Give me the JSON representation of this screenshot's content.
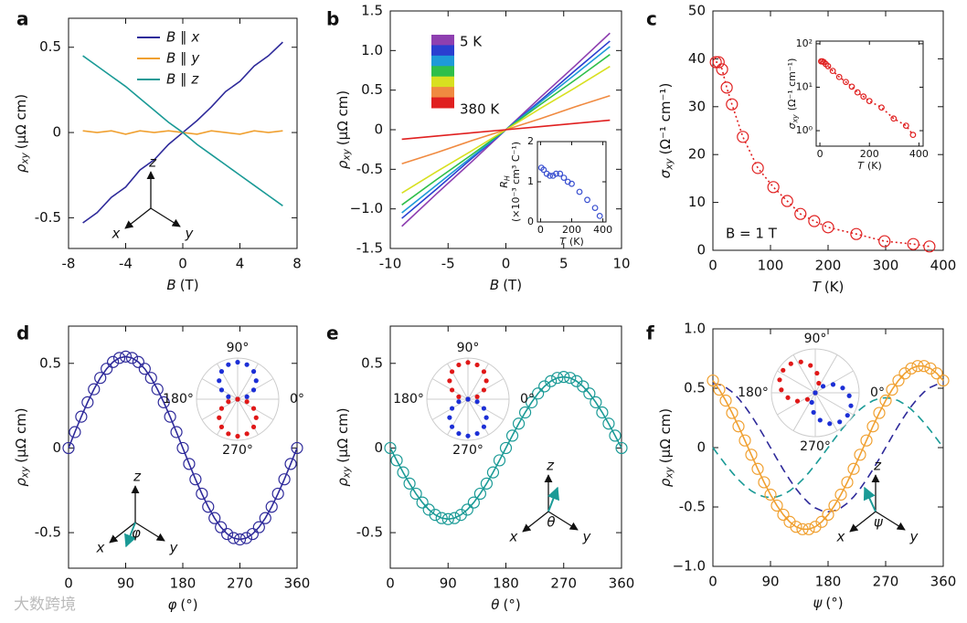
{
  "watermark": "大数跨境",
  "chart_data": [
    {
      "type": "line",
      "label": "a",
      "xlabel": {
        "symbol": "B",
        "unit": "(T)"
      },
      "ylabel": {
        "symbol": "ρ",
        "sub": "xy",
        "unit": "(μΩ cm)"
      },
      "x": [
        -7,
        -6,
        -5,
        -4,
        -3,
        -2,
        -1,
        0,
        1,
        2,
        3,
        4,
        5,
        6,
        7
      ],
      "series": [
        {
          "name": "B ∥ x",
          "color": "#2e2a9a",
          "style": "line",
          "values": [
            -0.53,
            -0.47,
            -0.38,
            -0.32,
            -0.22,
            -0.16,
            -0.07,
            0,
            0.07,
            0.15,
            0.24,
            0.3,
            0.39,
            0.45,
            0.53
          ]
        },
        {
          "name": "B ∥ y",
          "color": "#f0a030",
          "style": "line",
          "values": [
            0.01,
            0,
            0.01,
            -0.01,
            0.01,
            0,
            0.01,
            0,
            -0.01,
            0.01,
            0,
            -0.01,
            0.01,
            0,
            0.01
          ]
        },
        {
          "name": "B ∥ z",
          "color": "#1a9a96",
          "style": "line",
          "values": [
            0.45,
            0.39,
            0.33,
            0.27,
            0.2,
            0.13,
            0.06,
            0,
            -0.07,
            -0.13,
            -0.19,
            -0.25,
            -0.31,
            -0.37,
            -0.43
          ]
        }
      ],
      "xlim": [
        -8,
        8
      ],
      "xticks": [
        -8,
        -4,
        0,
        4,
        8
      ],
      "ylim": [
        -0.68,
        0.67
      ],
      "yticks": [
        -0.5,
        0,
        0.5
      ],
      "legend": "upper center",
      "frame_labels": [
        "z",
        "x",
        "y"
      ]
    },
    {
      "type": "line",
      "label": "b",
      "xlabel": {
        "symbol": "B",
        "unit": "(T)"
      },
      "ylabel": {
        "symbol": "ρ",
        "sub": "xy",
        "unit": "(μΩ cm)"
      },
      "x": [
        -9,
        -6,
        -3,
        0,
        3,
        6,
        9
      ],
      "series": [
        {
          "color": "#8e3fb0",
          "style": "line",
          "values": [
            -1.22,
            -0.81,
            -0.41,
            0,
            0.41,
            0.81,
            1.22
          ]
        },
        {
          "color": "#2a3fd0",
          "style": "line",
          "values": [
            -1.12,
            -0.75,
            -0.37,
            0,
            0.37,
            0.75,
            1.12
          ]
        },
        {
          "color": "#1e9ad8",
          "style": "line",
          "values": [
            -1.05,
            -0.7,
            -0.35,
            0,
            0.35,
            0.7,
            1.05
          ]
        },
        {
          "color": "#2fbf4a",
          "style": "line",
          "values": [
            -0.95,
            -0.63,
            -0.32,
            0,
            0.32,
            0.63,
            0.95
          ]
        },
        {
          "color": "#d8e020",
          "style": "line",
          "values": [
            -0.8,
            -0.53,
            -0.27,
            0,
            0.27,
            0.53,
            0.8
          ]
        },
        {
          "color": "#f08a40",
          "style": "line",
          "values": [
            -0.43,
            -0.29,
            -0.14,
            0,
            0.14,
            0.29,
            0.43
          ]
        },
        {
          "color": "#e02020",
          "style": "line",
          "values": [
            -0.12,
            -0.08,
            -0.04,
            0,
            0.04,
            0.08,
            0.12
          ]
        }
      ],
      "colorbar_labels": [
        "5 K",
        "380 K"
      ],
      "xlim": [
        -10,
        10
      ],
      "xticks": [
        -10,
        -5,
        0,
        5,
        10
      ],
      "ylim": [
        -1.5,
        1.5
      ],
      "yticks": [
        -1.5,
        {
          "value": -1,
          "label": "−1.0"
        },
        -0.5,
        0,
        0.5,
        {
          "value": 1,
          "label": "1.0"
        },
        1.5
      ],
      "inset": {
        "type": "scatter",
        "xlabel": {
          "symbol": "T",
          "unit": "(K)"
        },
        "ylabel": {
          "symbol": "R",
          "sub": "H",
          "unit": "(×10⁻³ cm³ C⁻¹)"
        },
        "x": [
          5,
          20,
          40,
          60,
          80,
          100,
          125,
          150,
          175,
          200,
          250,
          300,
          350,
          380
        ],
        "series": [
          {
            "color": "#3a50d0",
            "style": "markers",
            "values": [
              1.35,
              1.3,
              1.2,
              1.15,
              1.15,
              1.2,
              1.2,
              1.1,
              1.0,
              0.95,
              0.75,
              0.55,
              0.35,
              0.15
            ]
          }
        ],
        "xlim": [
          -20,
          420
        ],
        "xticks": [
          0,
          200,
          400
        ],
        "ylim": [
          0,
          2
        ],
        "yticks": [
          0,
          1,
          2
        ]
      }
    },
    {
      "type": "scatter",
      "label": "c",
      "xlabel": {
        "symbol": "T",
        "unit": "(K)"
      },
      "ylabel": {
        "symbol": "σ",
        "sub": "xy",
        "unit": "(Ω⁻¹ cm⁻¹)"
      },
      "x": [
        5,
        10,
        16,
        24,
        33,
        52,
        78,
        105,
        129,
        152,
        176,
        200,
        249,
        298,
        348,
        376
      ],
      "series": [
        {
          "color": "#e02020",
          "style": "line+markers",
          "line_style": "dotted",
          "values": [
            39.3,
            39.3,
            37.8,
            34,
            30.5,
            23.7,
            17.2,
            13.2,
            10.3,
            7.6,
            6.1,
            4.8,
            3.4,
            1.9,
            1.3,
            0.8
          ]
        }
      ],
      "xlim": [
        0,
        400
      ],
      "xticks": [
        0,
        100,
        200,
        300,
        400
      ],
      "ylim": [
        0,
        50
      ],
      "yticks": [
        0,
        10,
        20,
        30,
        40,
        50
      ],
      "annotation": "B = 1 T",
      "inset": {
        "xlabel": {
          "symbol": "T",
          "unit": "(K)"
        },
        "ylabel": {
          "symbol": "σ",
          "sub": "xy",
          "unit": "(Ω⁻¹ cm⁻¹)"
        },
        "xlim": [
          -15,
          417
        ],
        "xticks": [
          0,
          200,
          400
        ],
        "ylim": [
          0.44,
          115
        ],
        "ylog": true,
        "yticks": [
          {
            "value": 1,
            "label": "10⁰"
          },
          {
            "value": 10,
            "label": "10¹"
          },
          {
            "value": 100,
            "label": "10²"
          }
        ]
      }
    },
    {
      "type": "line",
      "label": "d",
      "xlabel": {
        "symbol": "φ",
        "unit": "(°)"
      },
      "ylabel": {
        "symbol": "ρ",
        "sub": "xy",
        "unit": "(μΩ cm)"
      },
      "x": [
        0,
        10,
        20,
        30,
        40,
        50,
        60,
        70,
        80,
        90,
        100,
        110,
        120,
        130,
        140,
        150,
        160,
        170,
        180,
        190,
        200,
        210,
        220,
        230,
        240,
        250,
        260,
        270,
        280,
        290,
        300,
        310,
        320,
        330,
        340,
        350,
        360
      ],
      "series": [
        {
          "color": "#2e2a9a",
          "style": "line+markers",
          "values": [
            0,
            0.094,
            0.185,
            0.27,
            0.347,
            0.414,
            0.468,
            0.508,
            0.532,
            0.54,
            0.532,
            0.508,
            0.468,
            0.414,
            0.347,
            0.27,
            0.185,
            0.094,
            0,
            -0.094,
            -0.185,
            -0.27,
            -0.347,
            -0.414,
            -0.468,
            -0.508,
            -0.532,
            -0.54,
            -0.532,
            -0.508,
            -0.468,
            -0.414,
            -0.347,
            -0.27,
            -0.185,
            -0.094,
            0
          ]
        }
      ],
      "xlim": [
        0,
        360
      ],
      "xticks": [
        0,
        90,
        180,
        270,
        360
      ],
      "ylim": [
        -0.71,
        0.72
      ],
      "yticks": [
        -0.5,
        0,
        0.5
      ],
      "polar": {
        "rlim": [
          0,
          0.6
        ],
        "labels": [
          "0°",
          "90°",
          "180°",
          "270°"
        ],
        "series": [
          {
            "color": "#1c2fd6",
            "theta": [
              0,
              15,
              30,
              45,
              60,
              75,
              90,
              105,
              120,
              135,
              150,
              165,
              180
            ],
            "r": [
              0,
              0.14,
              0.27,
              0.382,
              0.468,
              0.522,
              0.54,
              0.522,
              0.468,
              0.382,
              0.27,
              0.14,
              0
            ]
          },
          {
            "color": "#e01818",
            "theta": [
              180,
              195,
              210,
              225,
              240,
              255,
              270,
              285,
              300,
              315,
              330,
              345,
              360
            ],
            "r": [
              0,
              0.14,
              0.27,
              0.382,
              0.468,
              0.522,
              0.54,
              0.522,
              0.468,
              0.382,
              0.27,
              0.14,
              0
            ]
          }
        ]
      },
      "frame_labels": [
        "z",
        "x",
        "y"
      ],
      "angle_symbol": "φ"
    },
    {
      "type": "line",
      "label": "e",
      "xlabel": {
        "symbol": "θ",
        "unit": "(°)"
      },
      "ylabel": {
        "symbol": "ρ",
        "sub": "xy",
        "unit": "(μΩ cm)"
      },
      "x": [
        0,
        10,
        20,
        30,
        40,
        50,
        60,
        70,
        80,
        90,
        100,
        110,
        120,
        130,
        140,
        150,
        160,
        170,
        180,
        190,
        200,
        210,
        220,
        230,
        240,
        250,
        260,
        270,
        280,
        290,
        300,
        310,
        320,
        330,
        340,
        350,
        360
      ],
      "series": [
        {
          "color": "#1a9a96",
          "style": "line+markers",
          "values": [
            0,
            -0.073,
            -0.144,
            -0.21,
            -0.27,
            -0.322,
            -0.364,
            -0.395,
            -0.414,
            -0.42,
            -0.414,
            -0.395,
            -0.364,
            -0.322,
            -0.27,
            -0.21,
            -0.144,
            -0.073,
            0,
            0.073,
            0.144,
            0.21,
            0.27,
            0.322,
            0.364,
            0.395,
            0.414,
            0.42,
            0.414,
            0.395,
            0.364,
            0.322,
            0.27,
            0.21,
            0.144,
            0.073,
            0
          ]
        }
      ],
      "xlim": [
        0,
        360
      ],
      "xticks": [
        0,
        90,
        180,
        270,
        360
      ],
      "ylim": [
        -0.71,
        0.72
      ],
      "yticks": [
        -0.5,
        0,
        0.5
      ],
      "polar": {
        "rlim": [
          0,
          0.47
        ],
        "labels": [
          "0°",
          "90°",
          "180°",
          "270°"
        ],
        "series": [
          {
            "color": "#e01818",
            "theta": [
              0,
              15,
              30,
              45,
              60,
              75,
              90,
              105,
              120,
              135,
              150,
              165,
              180
            ],
            "r": [
              0,
              0.109,
              0.21,
              0.297,
              0.364,
              0.406,
              0.42,
              0.406,
              0.364,
              0.297,
              0.21,
              0.109,
              0
            ]
          },
          {
            "color": "#1c2fd6",
            "theta": [
              180,
              195,
              210,
              225,
              240,
              255,
              270,
              285,
              300,
              315,
              330,
              345,
              360
            ],
            "r": [
              0,
              0.109,
              0.21,
              0.297,
              0.364,
              0.406,
              0.42,
              0.406,
              0.364,
              0.297,
              0.21,
              0.109,
              0
            ]
          }
        ]
      },
      "frame_labels": [
        "z",
        "x",
        "y"
      ],
      "angle_symbol": "θ"
    },
    {
      "type": "line",
      "label": "f",
      "xlabel": {
        "symbol": "ψ",
        "unit": "(°)"
      },
      "ylabel": {
        "symbol": "ρ",
        "sub": "xy",
        "unit": "(μΩ cm)"
      },
      "x": [
        0,
        10,
        20,
        30,
        40,
        50,
        60,
        70,
        80,
        90,
        100,
        110,
        120,
        130,
        140,
        150,
        160,
        170,
        180,
        190,
        200,
        210,
        220,
        230,
        240,
        250,
        260,
        270,
        280,
        290,
        300,
        310,
        320,
        330,
        340,
        350,
        360
      ],
      "series": [
        {
          "color": "#2e2a9a",
          "style": "line",
          "line_style": "dashed",
          "values": [
            0.54,
            0.532,
            0.508,
            0.468,
            0.414,
            0.347,
            0.27,
            0.185,
            0.094,
            0,
            -0.094,
            -0.185,
            -0.27,
            -0.347,
            -0.414,
            -0.468,
            -0.508,
            -0.532,
            -0.54,
            -0.532,
            -0.508,
            -0.468,
            -0.414,
            -0.347,
            -0.27,
            -0.185,
            -0.094,
            0,
            0.094,
            0.185,
            0.27,
            0.347,
            0.414,
            0.468,
            0.508,
            0.532,
            0.54
          ]
        },
        {
          "color": "#1a9a96",
          "style": "line",
          "line_style": "dashed",
          "values": [
            0,
            -0.073,
            -0.144,
            -0.21,
            -0.27,
            -0.322,
            -0.364,
            -0.395,
            -0.414,
            -0.42,
            -0.414,
            -0.395,
            -0.364,
            -0.322,
            -0.27,
            -0.21,
            -0.144,
            -0.073,
            0,
            0.073,
            0.144,
            0.21,
            0.27,
            0.322,
            0.364,
            0.395,
            0.414,
            0.42,
            0.414,
            0.395,
            0.364,
            0.322,
            0.27,
            0.21,
            0.144,
            0.073,
            0
          ]
        },
        {
          "color": "#f0a030",
          "style": "line+markers",
          "values": [
            0.565,
            0.488,
            0.396,
            0.292,
            0.179,
            0.06,
            -0.06,
            -0.179,
            -0.292,
            -0.396,
            -0.488,
            -0.565,
            -0.625,
            -0.667,
            -0.687,
            -0.687,
            -0.667,
            -0.625,
            -0.565,
            -0.488,
            -0.396,
            -0.292,
            -0.179,
            -0.06,
            0.06,
            0.179,
            0.292,
            0.396,
            0.488,
            0.565,
            0.625,
            0.667,
            0.687,
            0.687,
            0.667,
            0.625,
            0.565
          ]
        }
      ],
      "xlim": [
        0,
        360
      ],
      "xticks": [
        0,
        90,
        180,
        270,
        360
      ],
      "ylim": [
        -1,
        1
      ],
      "yticks": [
        {
          "value": -1,
          "label": "−1.0"
        },
        -0.5,
        0,
        0.5,
        {
          "value": 1,
          "label": "1.0"
        }
      ],
      "polar": {
        "rlim": [
          0,
          0.77
        ],
        "labels": [
          "0°",
          "90°",
          "180°",
          "270°"
        ],
        "series": [
          {
            "color": "#e01818",
            "theta": [
              55,
              70,
              85,
              100,
              115,
              130,
              145,
              160,
              175,
              190,
              205,
              220,
              235
            ],
            "r": [
              0,
              0.179,
              0.345,
              0.488,
              0.598,
              0.666,
              0.69,
              0.666,
              0.598,
              0.488,
              0.345,
              0.179,
              0
            ]
          },
          {
            "color": "#1c2fd6",
            "theta": [
              235,
              250,
              265,
              280,
              295,
              310,
              325,
              340,
              355,
              370,
              385,
              400,
              415
            ],
            "r": [
              0,
              0.179,
              0.345,
              0.488,
              0.598,
              0.666,
              0.69,
              0.666,
              0.598,
              0.488,
              0.345,
              0.179,
              0
            ]
          }
        ]
      },
      "frame_labels": [
        "z",
        "x",
        "y"
      ],
      "angle_symbol": "ψ"
    }
  ]
}
